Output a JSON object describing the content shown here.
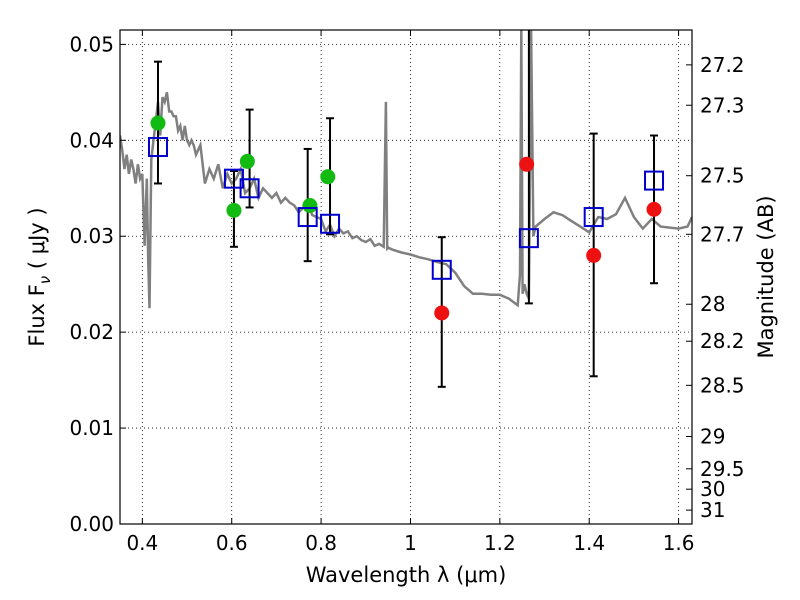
{
  "chart_data": {
    "type": "scatter",
    "xlabel": "Wavelength  λ (μm)",
    "ylabel": "Flux  F",
    "ylabel_sub": "ν",
    "ylabel_unit": " ( μJy )",
    "y2label": "Magnitude (AB)",
    "xlim": [
      0.35,
      1.63
    ],
    "ylim": [
      0.0,
      0.0515
    ],
    "x_ticks": [
      0.4,
      0.6,
      0.8,
      1.0,
      1.2,
      1.4,
      1.6
    ],
    "x_tick_labels": [
      "0.4",
      "0.6",
      "0.8",
      "1",
      "1.2",
      "1.4",
      "1.6"
    ],
    "y_ticks": [
      0.0,
      0.01,
      0.02,
      0.03,
      0.04,
      0.05
    ],
    "y_tick_labels": [
      "0.00",
      "0.01",
      "0.02",
      "0.03",
      "0.04",
      "0.05"
    ],
    "y2_ticks": [
      27.2,
      27.3,
      27.5,
      27.7,
      28,
      28.2,
      28.5,
      29,
      29.5,
      30,
      31
    ],
    "y2_tick_labels": [
      "27.2",
      "27.3",
      "27.5",
      "27.7",
      "28",
      "28.2",
      "28.5",
      "29",
      "29.5",
      "30",
      "31"
    ],
    "grid": true,
    "colors": {
      "model": "#808080",
      "observed_optical": "#11bb11",
      "observed_nir": "#ee1111",
      "model_photometry": "#0000cc",
      "errorbar": "#000000"
    },
    "series": [
      {
        "kind": "line",
        "x": [
          0.35,
          0.355,
          0.36,
          0.365,
          0.37,
          0.375,
          0.38,
          0.385,
          0.39,
          0.395,
          0.4,
          0.405,
          0.41,
          0.413,
          0.416,
          0.42,
          0.425,
          0.43,
          0.435,
          0.44,
          0.445,
          0.45,
          0.455,
          0.46,
          0.465,
          0.47,
          0.475,
          0.48,
          0.485,
          0.49,
          0.495,
          0.5,
          0.505,
          0.51,
          0.515,
          0.52,
          0.53,
          0.54,
          0.55,
          0.56,
          0.57,
          0.58,
          0.59,
          0.6,
          0.61,
          0.62,
          0.63,
          0.64,
          0.65,
          0.66,
          0.67,
          0.68,
          0.69,
          0.7,
          0.71,
          0.72,
          0.73,
          0.74,
          0.75,
          0.76,
          0.77,
          0.78,
          0.79,
          0.8,
          0.81,
          0.82,
          0.83,
          0.84,
          0.85,
          0.86,
          0.87,
          0.88,
          0.89,
          0.9,
          0.91,
          0.92,
          0.93,
          0.94,
          0.945,
          0.948,
          0.951,
          0.955,
          0.96,
          0.98,
          1.0,
          1.02,
          1.04,
          1.06,
          1.08,
          1.1,
          1.12,
          1.14,
          1.16,
          1.18,
          1.2,
          1.22,
          1.24,
          1.245,
          1.248,
          1.251,
          1.255,
          1.26,
          1.265,
          1.27,
          1.275,
          1.28,
          1.3,
          1.32,
          1.34,
          1.36,
          1.38,
          1.4,
          1.42,
          1.44,
          1.46,
          1.48,
          1.5,
          1.52,
          1.54,
          1.56,
          1.58,
          1.6,
          1.62,
          1.63
        ],
        "y": [
          0.0405,
          0.039,
          0.037,
          0.0385,
          0.0365,
          0.038,
          0.037,
          0.0355,
          0.0375,
          0.036,
          0.0365,
          0.029,
          0.036,
          0.0275,
          0.0225,
          0.038,
          0.04,
          0.042,
          0.044,
          0.0405,
          0.0445,
          0.044,
          0.045,
          0.043,
          0.043,
          0.0425,
          0.0425,
          0.041,
          0.0415,
          0.04,
          0.0415,
          0.04,
          0.0395,
          0.04,
          0.0395,
          0.0385,
          0.0395,
          0.0355,
          0.037,
          0.036,
          0.0375,
          0.035,
          0.0365,
          0.0355,
          0.036,
          0.037,
          0.0345,
          0.035,
          0.036,
          0.034,
          0.035,
          0.0345,
          0.034,
          0.0345,
          0.0335,
          0.034,
          0.0335,
          0.0332,
          0.0325,
          0.033,
          0.0335,
          0.0322,
          0.032,
          0.0318,
          0.0305,
          0.0312,
          0.03,
          0.0308,
          0.0303,
          0.0305,
          0.0298,
          0.03,
          0.0296,
          0.0294,
          0.0297,
          0.029,
          0.0292,
          0.0289,
          0.044,
          0.0287,
          0.0288,
          0.0287,
          0.0286,
          0.0283,
          0.0281,
          0.0278,
          0.0276,
          0.0273,
          0.0271,
          0.0262,
          0.0248,
          0.024,
          0.024,
          0.0239,
          0.0239,
          0.0235,
          0.0228,
          0.026,
          0.0515,
          0.024,
          0.025,
          0.024,
          0.0235,
          0.0515,
          0.03,
          0.031,
          0.0318,
          0.0325,
          0.0322,
          0.0316,
          0.031,
          0.0304,
          0.032,
          0.0318,
          0.0323,
          0.034,
          0.032,
          0.0308,
          0.0318,
          0.031,
          0.0309,
          0.0308,
          0.031,
          0.032
        ]
      },
      {
        "kind": "points",
        "marker": "circle",
        "color_key": "observed_optical",
        "x": [
          0.435,
          0.605,
          0.635,
          0.775,
          0.815
        ],
        "y": [
          0.0418,
          0.0327,
          0.0378,
          0.0332,
          0.0362
        ]
      },
      {
        "kind": "points",
        "marker": "circle",
        "color_key": "observed_nir",
        "x": [
          1.07,
          1.26,
          1.41,
          1.545
        ],
        "y": [
          0.022,
          0.0375,
          0.028,
          0.0328
        ]
      },
      {
        "kind": "points",
        "marker": "square",
        "color_key": "model_photometry",
        "x": [
          0.435,
          0.605,
          0.64,
          0.77,
          0.82,
          1.07,
          1.265,
          1.41,
          1.545
        ],
        "y": [
          0.0393,
          0.036,
          0.035,
          0.032,
          0.0313,
          0.0265,
          0.0298,
          0.032,
          0.0358
        ]
      },
      {
        "kind": "errorbars",
        "color_key": "errorbar",
        "x": [
          0.435,
          0.605,
          0.64,
          0.77,
          0.82,
          1.07,
          1.265,
          1.41,
          1.545
        ],
        "y_low": [
          0.0355,
          0.0289,
          0.033,
          0.0274,
          0.0302,
          0.0143,
          0.023,
          0.0154,
          0.0251
        ],
        "y_high": [
          0.0482,
          0.0368,
          0.0432,
          0.0391,
          0.0423,
          0.0299,
          0.0515,
          0.0407,
          0.0405
        ]
      }
    ]
  }
}
